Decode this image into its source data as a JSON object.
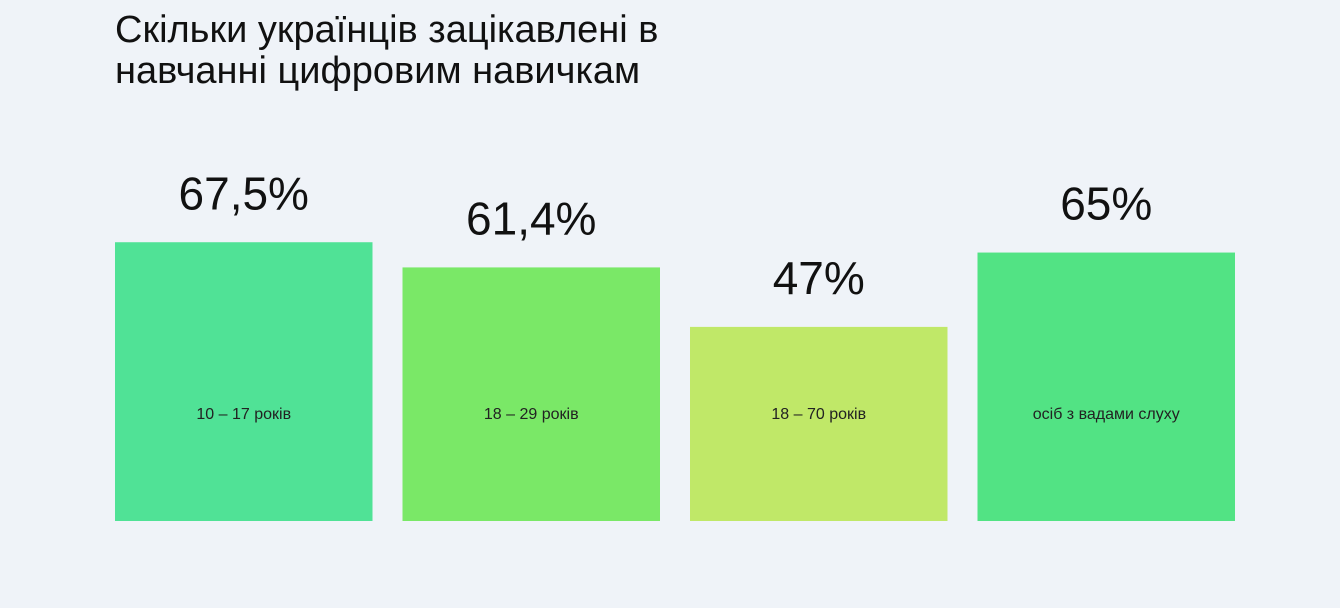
{
  "chart_data": {
    "type": "bar",
    "title": "Скільки українців зацікавлені в навчанні цифровим навичкам",
    "categories": [
      "10 – 17 років",
      "18 – 29 років",
      "18 – 70 років",
      "осіб з вадами слуху"
    ],
    "values": [
      67.5,
      61.4,
      47,
      65
    ],
    "value_labels": [
      "67,5%",
      "61,4%",
      "47%",
      "65%"
    ],
    "colors": [
      "#50e296",
      "#7ae867",
      "#c0e868",
      "#52e384"
    ],
    "ylim": [
      0,
      100
    ]
  }
}
